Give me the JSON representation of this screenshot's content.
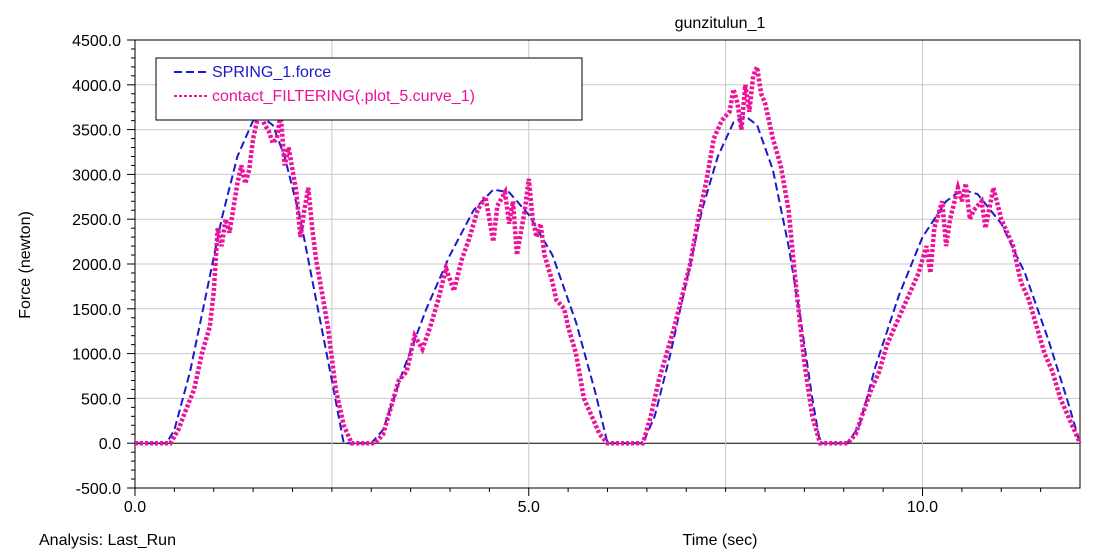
{
  "chart_data": {
    "type": "line",
    "title": "gunzitulun_1",
    "xlabel": "Time (sec)",
    "ylabel": "Force (newton)",
    "footer": "Analysis:  Last_Run",
    "xlim": [
      0,
      12
    ],
    "ylim": [
      -500,
      4500
    ],
    "x_ticks": [
      0,
      5,
      10
    ],
    "x_tick_labels": [
      "0.0",
      "5.0",
      "10.0"
    ],
    "y_ticks": [
      -500,
      0,
      500,
      1000,
      1500,
      2000,
      2500,
      3000,
      3500,
      4000,
      4500
    ],
    "y_tick_labels": [
      "-500.0",
      "0.0",
      "500.0",
      "1000.0",
      "1500.0",
      "2000.0",
      "2500.0",
      "3000.0",
      "3500.0",
      "4000.0",
      "4500.0"
    ],
    "grid": true,
    "legend_position": "top-left",
    "series": [
      {
        "name": "SPRING_1.force",
        "color": "#1a1acc",
        "style": "dashed",
        "points": [
          [
            0,
            0
          ],
          [
            0.4,
            0
          ],
          [
            0.5,
            150
          ],
          [
            0.7,
            800
          ],
          [
            0.9,
            1650
          ],
          [
            1.1,
            2500
          ],
          [
            1.3,
            3200
          ],
          [
            1.5,
            3600
          ],
          [
            1.6,
            3650
          ],
          [
            1.75,
            3550
          ],
          [
            1.9,
            3200
          ],
          [
            2.1,
            2500
          ],
          [
            2.3,
            1600
          ],
          [
            2.5,
            700
          ],
          [
            2.65,
            0
          ],
          [
            3.0,
            0
          ],
          [
            3.15,
            150
          ],
          [
            3.4,
            800
          ],
          [
            3.7,
            1500
          ],
          [
            4.0,
            2100
          ],
          [
            4.3,
            2600
          ],
          [
            4.55,
            2830
          ],
          [
            4.75,
            2800
          ],
          [
            5.0,
            2550
          ],
          [
            5.3,
            2100
          ],
          [
            5.6,
            1350
          ],
          [
            5.85,
            550
          ],
          [
            6.0,
            0
          ],
          [
            6.45,
            0
          ],
          [
            6.6,
            300
          ],
          [
            6.8,
            1000
          ],
          [
            7.0,
            1800
          ],
          [
            7.2,
            2600
          ],
          [
            7.4,
            3200
          ],
          [
            7.6,
            3580
          ],
          [
            7.75,
            3650
          ],
          [
            7.9,
            3550
          ],
          [
            8.1,
            3050
          ],
          [
            8.3,
            2200
          ],
          [
            8.45,
            1400
          ],
          [
            8.6,
            500
          ],
          [
            8.7,
            0
          ],
          [
            9.05,
            0
          ],
          [
            9.2,
            200
          ],
          [
            9.4,
            850
          ],
          [
            9.7,
            1650
          ],
          [
            10.0,
            2300
          ],
          [
            10.3,
            2700
          ],
          [
            10.5,
            2830
          ],
          [
            10.7,
            2780
          ],
          [
            11.0,
            2450
          ],
          [
            11.3,
            1900
          ],
          [
            11.6,
            1150
          ],
          [
            11.85,
            450
          ],
          [
            12.0,
            0
          ]
        ]
      },
      {
        "name": "contact_FILTERING(.plot_5.curve_1)",
        "color": "#ee1199",
        "style": "dotted",
        "points": [
          [
            0,
            0
          ],
          [
            0.45,
            0
          ],
          [
            0.55,
            150
          ],
          [
            0.65,
            380
          ],
          [
            0.75,
            600
          ],
          [
            0.85,
            1000
          ],
          [
            0.95,
            1300
          ],
          [
            1.0,
            1700
          ],
          [
            1.05,
            2400
          ],
          [
            1.1,
            2200
          ],
          [
            1.15,
            2500
          ],
          [
            1.2,
            2350
          ],
          [
            1.3,
            2900
          ],
          [
            1.35,
            3100
          ],
          [
            1.4,
            2900
          ],
          [
            1.45,
            3050
          ],
          [
            1.5,
            3400
          ],
          [
            1.55,
            3600
          ],
          [
            1.6,
            3650
          ],
          [
            1.65,
            3550
          ],
          [
            1.7,
            3480
          ],
          [
            1.75,
            3350
          ],
          [
            1.8,
            3400
          ],
          [
            1.85,
            3680
          ],
          [
            1.9,
            3100
          ],
          [
            1.95,
            3300
          ],
          [
            2.0,
            3050
          ],
          [
            2.05,
            2800
          ],
          [
            2.1,
            2300
          ],
          [
            2.15,
            2600
          ],
          [
            2.2,
            2850
          ],
          [
            2.25,
            2400
          ],
          [
            2.3,
            2050
          ],
          [
            2.35,
            1800
          ],
          [
            2.45,
            1300
          ],
          [
            2.55,
            600
          ],
          [
            2.65,
            200
          ],
          [
            2.75,
            0
          ],
          [
            3.05,
            0
          ],
          [
            3.15,
            100
          ],
          [
            3.25,
            400
          ],
          [
            3.35,
            700
          ],
          [
            3.45,
            800
          ],
          [
            3.55,
            1200
          ],
          [
            3.65,
            1050
          ],
          [
            3.75,
            1300
          ],
          [
            3.85,
            1600
          ],
          [
            3.95,
            1950
          ],
          [
            4.05,
            1700
          ],
          [
            4.15,
            2050
          ],
          [
            4.25,
            2300
          ],
          [
            4.35,
            2600
          ],
          [
            4.45,
            2750
          ],
          [
            4.5,
            2500
          ],
          [
            4.55,
            2250
          ],
          [
            4.6,
            2650
          ],
          [
            4.7,
            2800
          ],
          [
            4.75,
            2450
          ],
          [
            4.8,
            2700
          ],
          [
            4.85,
            2100
          ],
          [
            4.9,
            2350
          ],
          [
            4.95,
            2600
          ],
          [
            5.0,
            2950
          ],
          [
            5.05,
            2500
          ],
          [
            5.1,
            2300
          ],
          [
            5.15,
            2450
          ],
          [
            5.2,
            2100
          ],
          [
            5.3,
            1800
          ],
          [
            5.35,
            1600
          ],
          [
            5.45,
            1500
          ],
          [
            5.5,
            1300
          ],
          [
            5.6,
            1000
          ],
          [
            5.7,
            500
          ],
          [
            5.8,
            300
          ],
          [
            5.9,
            100
          ],
          [
            6.0,
            0
          ],
          [
            6.45,
            0
          ],
          [
            6.55,
            300
          ],
          [
            6.65,
            700
          ],
          [
            6.75,
            1000
          ],
          [
            6.85,
            1300
          ],
          [
            6.95,
            1650
          ],
          [
            7.05,
            2000
          ],
          [
            7.15,
            2500
          ],
          [
            7.25,
            2900
          ],
          [
            7.35,
            3400
          ],
          [
            7.45,
            3600
          ],
          [
            7.55,
            3700
          ],
          [
            7.6,
            3950
          ],
          [
            7.65,
            3800
          ],
          [
            7.7,
            3500
          ],
          [
            7.75,
            4000
          ],
          [
            7.8,
            3700
          ],
          [
            7.85,
            4100
          ],
          [
            7.9,
            4200
          ],
          [
            7.95,
            3900
          ],
          [
            8.0,
            3800
          ],
          [
            8.05,
            3600
          ],
          [
            8.1,
            3400
          ],
          [
            8.2,
            3100
          ],
          [
            8.3,
            2600
          ],
          [
            8.4,
            1700
          ],
          [
            8.5,
            900
          ],
          [
            8.6,
            300
          ],
          [
            8.7,
            0
          ],
          [
            9.05,
            0
          ],
          [
            9.15,
            100
          ],
          [
            9.25,
            350
          ],
          [
            9.35,
            600
          ],
          [
            9.45,
            800
          ],
          [
            9.55,
            1100
          ],
          [
            9.65,
            1300
          ],
          [
            9.75,
            1500
          ],
          [
            9.85,
            1700
          ],
          [
            9.95,
            1900
          ],
          [
            10.05,
            2200
          ],
          [
            10.1,
            1900
          ],
          [
            10.15,
            2400
          ],
          [
            10.25,
            2700
          ],
          [
            10.3,
            2200
          ],
          [
            10.35,
            2500
          ],
          [
            10.45,
            2850
          ],
          [
            10.5,
            2700
          ],
          [
            10.55,
            2900
          ],
          [
            10.6,
            2500
          ],
          [
            10.65,
            2600
          ],
          [
            10.75,
            2700
          ],
          [
            10.8,
            2400
          ],
          [
            10.9,
            2850
          ],
          [
            11.0,
            2500
          ],
          [
            11.05,
            2400
          ],
          [
            11.15,
            2200
          ],
          [
            11.25,
            1800
          ],
          [
            11.35,
            1600
          ],
          [
            11.45,
            1300
          ],
          [
            11.55,
            1000
          ],
          [
            11.65,
            800
          ],
          [
            11.75,
            500
          ],
          [
            11.85,
            300
          ],
          [
            11.95,
            100
          ],
          [
            12.0,
            0
          ]
        ]
      }
    ]
  }
}
